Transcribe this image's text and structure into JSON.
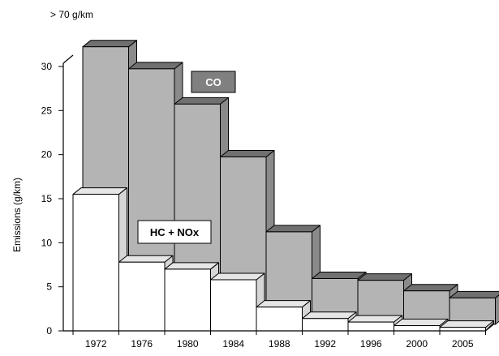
{
  "chart_data": {
    "type": "bar",
    "subtype": "3d-stacked-depth",
    "title": "",
    "top_note": "> 70 g/km",
    "xlabel": "",
    "ylabel": "Emissions (g/km)",
    "ylim": [
      0,
      30
    ],
    "yticks": [
      0,
      5,
      10,
      15,
      20,
      25,
      30
    ],
    "grid": false,
    "categories": [
      "1972",
      "1976",
      "1980",
      "1984",
      "1988",
      "1992",
      "1996",
      "2000",
      "2005"
    ],
    "series": [
      {
        "name": "CO",
        "values": [
          32,
          29,
          25,
          19,
          10.5,
          5.2,
          5,
          3.8,
          3
        ],
        "colors": {
          "front": "#b4b4b4",
          "top": "#707070",
          "side": "#8a8a8a"
        },
        "clipped_at_axis_top": true
      },
      {
        "name": "HC + NOx",
        "values": [
          15.5,
          7.8,
          7,
          5.8,
          2.7,
          1.4,
          1,
          0.6,
          0.4
        ],
        "colors": {
          "front": "#ffffff",
          "top": "#e6e6e6",
          "side": "#d6d6d6"
        }
      }
    ],
    "legend_labels": [
      {
        "series": "CO",
        "text": "CO",
        "bg": "#808080",
        "fg": "#ffffff"
      },
      {
        "series": "HC + NOx",
        "text": "HC + NOx",
        "bg": "#ffffff",
        "fg": "#000000"
      }
    ]
  }
}
